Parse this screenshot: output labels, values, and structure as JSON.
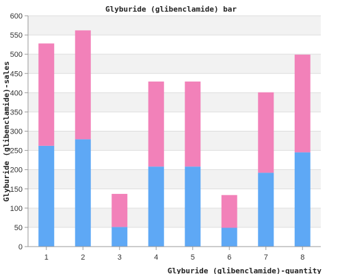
{
  "chart_data": {
    "type": "bar",
    "stacked": true,
    "title": "Glyburide (glibenclamide) bar",
    "xlabel": "Glyburide (glibenclamide)-quantity",
    "ylabel": "Glyburide (glibenclamide)-sales",
    "categories": [
      "1",
      "2",
      "3",
      "4",
      "5",
      "6",
      "7",
      "8"
    ],
    "ylim": [
      0,
      600
    ],
    "yticks": [
      0,
      50,
      100,
      150,
      200,
      250,
      300,
      350,
      400,
      450,
      500,
      550,
      600
    ],
    "grid": true,
    "legend": "none",
    "series": [
      {
        "values": [
          262,
          279,
          51,
          208,
          208,
          49,
          192,
          245
        ],
        "color": "#5ea8f5"
      },
      {
        "values": [
          266,
          283,
          86,
          221,
          221,
          85,
          209,
          254
        ],
        "color": "#f281b9"
      }
    ]
  }
}
